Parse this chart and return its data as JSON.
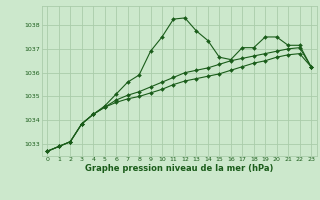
{
  "background_color": "#cce8cc",
  "grid_color": "#aaccaa",
  "line_color": "#1a5c1a",
  "xlabel": "Graphe pression niveau de la mer (hPa)",
  "ylim": [
    1032.5,
    1038.8
  ],
  "xlim": [
    -0.5,
    23.5
  ],
  "yticks": [
    1033,
    1034,
    1035,
    1036,
    1037,
    1038
  ],
  "xticks": [
    0,
    1,
    2,
    3,
    4,
    5,
    6,
    7,
    8,
    9,
    10,
    11,
    12,
    13,
    14,
    15,
    16,
    17,
    18,
    19,
    20,
    21,
    22,
    23
  ],
  "series1": [
    1032.7,
    1032.9,
    1033.1,
    1033.85,
    1034.25,
    1034.6,
    1035.1,
    1035.6,
    1035.9,
    1036.9,
    1037.5,
    1038.25,
    1038.3,
    1037.75,
    1037.35,
    1036.65,
    1036.55,
    1037.05,
    1037.05,
    1037.5,
    1037.5,
    1037.15,
    1037.15,
    1036.25
  ],
  "series2": [
    1032.7,
    1032.9,
    1033.1,
    1033.85,
    1034.25,
    1034.55,
    1034.85,
    1035.05,
    1035.2,
    1035.4,
    1035.6,
    1035.8,
    1036.0,
    1036.1,
    1036.2,
    1036.35,
    1036.5,
    1036.6,
    1036.7,
    1036.8,
    1036.9,
    1037.0,
    1037.05,
    1036.25
  ],
  "series3": [
    1032.7,
    1032.9,
    1033.1,
    1033.85,
    1034.25,
    1034.55,
    1034.75,
    1034.9,
    1035.0,
    1035.15,
    1035.3,
    1035.5,
    1035.65,
    1035.75,
    1035.85,
    1035.95,
    1036.1,
    1036.25,
    1036.4,
    1036.5,
    1036.65,
    1036.75,
    1036.8,
    1036.25
  ]
}
